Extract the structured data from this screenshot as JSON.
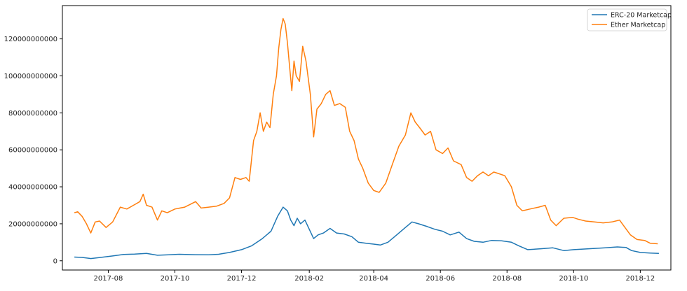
{
  "chart_data": {
    "type": "line",
    "title": "",
    "xlabel": "",
    "ylabel": "",
    "grid": false,
    "legend_position": "top-right",
    "xlim": [
      "2017-06-20",
      "2018-12-29"
    ],
    "ylim": [
      -5000000000,
      138000000000
    ],
    "x_ticks": [
      "2017-08",
      "2017-10",
      "2017-12",
      "2018-02",
      "2018-04",
      "2018-06",
      "2018-08",
      "2018-10",
      "2018-12"
    ],
    "y_ticks": [
      "0",
      "20000000000",
      "40000000000",
      "60000000000",
      "80000000000",
      "100000000000",
      "120000000000"
    ],
    "series": [
      {
        "name": "ERC-20 Marketcap",
        "color": "#1f77b4",
        "points": [
          [
            "2017-07-01",
            2000000000
          ],
          [
            "2017-07-08",
            1800000000
          ],
          [
            "2017-07-16",
            1200000000
          ],
          [
            "2017-07-25",
            1800000000
          ],
          [
            "2017-08-05",
            2600000000
          ],
          [
            "2017-08-15",
            3400000000
          ],
          [
            "2017-08-25",
            3600000000
          ],
          [
            "2017-09-05",
            4000000000
          ],
          [
            "2017-09-15",
            3000000000
          ],
          [
            "2017-09-25",
            3200000000
          ],
          [
            "2017-10-05",
            3500000000
          ],
          [
            "2017-10-20",
            3300000000
          ],
          [
            "2017-11-01",
            3200000000
          ],
          [
            "2017-11-10",
            3500000000
          ],
          [
            "2017-11-20",
            4500000000
          ],
          [
            "2017-12-01",
            6000000000
          ],
          [
            "2017-12-10",
            8000000000
          ],
          [
            "2017-12-20",
            12000000000
          ],
          [
            "2017-12-28",
            16000000000
          ],
          [
            "2018-01-03",
            24000000000
          ],
          [
            "2018-01-08",
            29000000000
          ],
          [
            "2018-01-12",
            27000000000
          ],
          [
            "2018-01-15",
            22000000000
          ],
          [
            "2018-01-18",
            19000000000
          ],
          [
            "2018-01-21",
            23000000000
          ],
          [
            "2018-01-24",
            20000000000
          ],
          [
            "2018-01-28",
            22000000000
          ],
          [
            "2018-02-01",
            17000000000
          ],
          [
            "2018-02-05",
            12000000000
          ],
          [
            "2018-02-09",
            14000000000
          ],
          [
            "2018-02-14",
            15000000000
          ],
          [
            "2018-02-20",
            17500000000
          ],
          [
            "2018-02-26",
            15000000000
          ],
          [
            "2018-03-05",
            14500000000
          ],
          [
            "2018-03-12",
            13000000000
          ],
          [
            "2018-03-18",
            10000000000
          ],
          [
            "2018-03-25",
            9500000000
          ],
          [
            "2018-04-01",
            9000000000
          ],
          [
            "2018-04-07",
            8500000000
          ],
          [
            "2018-04-14",
            10000000000
          ],
          [
            "2018-04-22",
            14000000000
          ],
          [
            "2018-04-30",
            18000000000
          ],
          [
            "2018-05-06",
            21000000000
          ],
          [
            "2018-05-12",
            20000000000
          ],
          [
            "2018-05-20",
            18500000000
          ],
          [
            "2018-05-27",
            17000000000
          ],
          [
            "2018-06-03",
            16000000000
          ],
          [
            "2018-06-10",
            14000000000
          ],
          [
            "2018-06-18",
            15500000000
          ],
          [
            "2018-06-25",
            12000000000
          ],
          [
            "2018-07-02",
            10500000000
          ],
          [
            "2018-07-10",
            10000000000
          ],
          [
            "2018-07-18",
            11000000000
          ],
          [
            "2018-07-27",
            10800000000
          ],
          [
            "2018-08-05",
            10000000000
          ],
          [
            "2018-08-12",
            8000000000
          ],
          [
            "2018-08-20",
            6000000000
          ],
          [
            "2018-09-01",
            6500000000
          ],
          [
            "2018-09-12",
            7000000000
          ],
          [
            "2018-09-22",
            5500000000
          ],
          [
            "2018-10-01",
            6000000000
          ],
          [
            "2018-10-15",
            6500000000
          ],
          [
            "2018-10-30",
            7000000000
          ],
          [
            "2018-11-10",
            7500000000
          ],
          [
            "2018-11-18",
            7200000000
          ],
          [
            "2018-11-23",
            5500000000
          ],
          [
            "2018-12-01",
            4500000000
          ],
          [
            "2018-12-10",
            4200000000
          ],
          [
            "2018-12-18",
            4000000000
          ]
        ]
      },
      {
        "name": "Ether Marketcap",
        "color": "#ff7f0e",
        "points": [
          [
            "2017-07-01",
            26000000000
          ],
          [
            "2017-07-04",
            26500000000
          ],
          [
            "2017-07-08",
            24000000000
          ],
          [
            "2017-07-12",
            20000000000
          ],
          [
            "2017-07-16",
            15000000000
          ],
          [
            "2017-07-20",
            21000000000
          ],
          [
            "2017-07-24",
            21500000000
          ],
          [
            "2017-07-30",
            18000000000
          ],
          [
            "2017-08-05",
            21000000000
          ],
          [
            "2017-08-12",
            29000000000
          ],
          [
            "2017-08-18",
            28000000000
          ],
          [
            "2017-08-24",
            30000000000
          ],
          [
            "2017-08-30",
            32000000000
          ],
          [
            "2017-09-02",
            36000000000
          ],
          [
            "2017-09-05",
            30000000000
          ],
          [
            "2017-09-10",
            29000000000
          ],
          [
            "2017-09-15",
            22000000000
          ],
          [
            "2017-09-19",
            27000000000
          ],
          [
            "2017-09-24",
            26000000000
          ],
          [
            "2017-10-01",
            28000000000
          ],
          [
            "2017-10-10",
            29000000000
          ],
          [
            "2017-10-15",
            30500000000
          ],
          [
            "2017-10-20",
            32000000000
          ],
          [
            "2017-10-25",
            28500000000
          ],
          [
            "2017-11-01",
            29000000000
          ],
          [
            "2017-11-08",
            29500000000
          ],
          [
            "2017-11-15",
            31000000000
          ],
          [
            "2017-11-20",
            34000000000
          ],
          [
            "2017-11-25",
            45000000000
          ],
          [
            "2017-11-30",
            44000000000
          ],
          [
            "2017-12-05",
            45000000000
          ],
          [
            "2017-12-08",
            43000000000
          ],
          [
            "2017-12-12",
            65000000000
          ],
          [
            "2017-12-15",
            70000000000
          ],
          [
            "2017-12-18",
            80000000000
          ],
          [
            "2017-12-21",
            70000000000
          ],
          [
            "2017-12-24",
            75000000000
          ],
          [
            "2017-12-27",
            72000000000
          ],
          [
            "2017-12-30",
            90000000000
          ],
          [
            "2018-01-02",
            100000000000
          ],
          [
            "2018-01-04",
            115000000000
          ],
          [
            "2018-01-06",
            125000000000
          ],
          [
            "2018-01-08",
            131000000000
          ],
          [
            "2018-01-10",
            128000000000
          ],
          [
            "2018-01-12",
            118000000000
          ],
          [
            "2018-01-14",
            105000000000
          ],
          [
            "2018-01-16",
            92000000000
          ],
          [
            "2018-01-18",
            108000000000
          ],
          [
            "2018-01-20",
            100000000000
          ],
          [
            "2018-01-23",
            97000000000
          ],
          [
            "2018-01-26",
            116000000000
          ],
          [
            "2018-01-29",
            108000000000
          ],
          [
            "2018-02-02",
            90000000000
          ],
          [
            "2018-02-05",
            67000000000
          ],
          [
            "2018-02-08",
            82000000000
          ],
          [
            "2018-02-12",
            85000000000
          ],
          [
            "2018-02-16",
            90000000000
          ],
          [
            "2018-02-20",
            92000000000
          ],
          [
            "2018-02-24",
            84000000000
          ],
          [
            "2018-03-01",
            85000000000
          ],
          [
            "2018-03-06",
            83000000000
          ],
          [
            "2018-03-10",
            70000000000
          ],
          [
            "2018-03-14",
            65000000000
          ],
          [
            "2018-03-18",
            55000000000
          ],
          [
            "2018-03-22",
            50000000000
          ],
          [
            "2018-03-27",
            42000000000
          ],
          [
            "2018-04-01",
            38000000000
          ],
          [
            "2018-04-06",
            37000000000
          ],
          [
            "2018-04-12",
            42000000000
          ],
          [
            "2018-04-18",
            52000000000
          ],
          [
            "2018-04-24",
            62000000000
          ],
          [
            "2018-04-30",
            68000000000
          ],
          [
            "2018-05-05",
            80000000000
          ],
          [
            "2018-05-09",
            75000000000
          ],
          [
            "2018-05-13",
            72000000000
          ],
          [
            "2018-05-18",
            68000000000
          ],
          [
            "2018-05-23",
            70000000000
          ],
          [
            "2018-05-28",
            60000000000
          ],
          [
            "2018-06-03",
            58000000000
          ],
          [
            "2018-06-08",
            61000000000
          ],
          [
            "2018-06-13",
            54000000000
          ],
          [
            "2018-06-20",
            52000000000
          ],
          [
            "2018-06-25",
            45000000000
          ],
          [
            "2018-06-30",
            43000000000
          ],
          [
            "2018-07-05",
            46000000000
          ],
          [
            "2018-07-10",
            48000000000
          ],
          [
            "2018-07-15",
            46000000000
          ],
          [
            "2018-07-20",
            48000000000
          ],
          [
            "2018-07-25",
            47000000000
          ],
          [
            "2018-07-30",
            46000000000
          ],
          [
            "2018-08-05",
            40000000000
          ],
          [
            "2018-08-10",
            30000000000
          ],
          [
            "2018-08-15",
            27000000000
          ],
          [
            "2018-08-22",
            28000000000
          ],
          [
            "2018-08-30",
            29000000000
          ],
          [
            "2018-09-05",
            30000000000
          ],
          [
            "2018-09-10",
            22000000000
          ],
          [
            "2018-09-15",
            19000000000
          ],
          [
            "2018-09-22",
            23000000000
          ],
          [
            "2018-09-30",
            23500000000
          ],
          [
            "2018-10-05",
            22500000000
          ],
          [
            "2018-10-12",
            21500000000
          ],
          [
            "2018-10-20",
            21000000000
          ],
          [
            "2018-10-28",
            20500000000
          ],
          [
            "2018-11-05",
            21000000000
          ],
          [
            "2018-11-12",
            22000000000
          ],
          [
            "2018-11-17",
            18000000000
          ],
          [
            "2018-11-22",
            14000000000
          ],
          [
            "2018-11-28",
            11500000000
          ],
          [
            "2018-12-05",
            11000000000
          ],
          [
            "2018-12-10",
            9500000000
          ],
          [
            "2018-12-17",
            9200000000
          ]
        ]
      }
    ]
  }
}
